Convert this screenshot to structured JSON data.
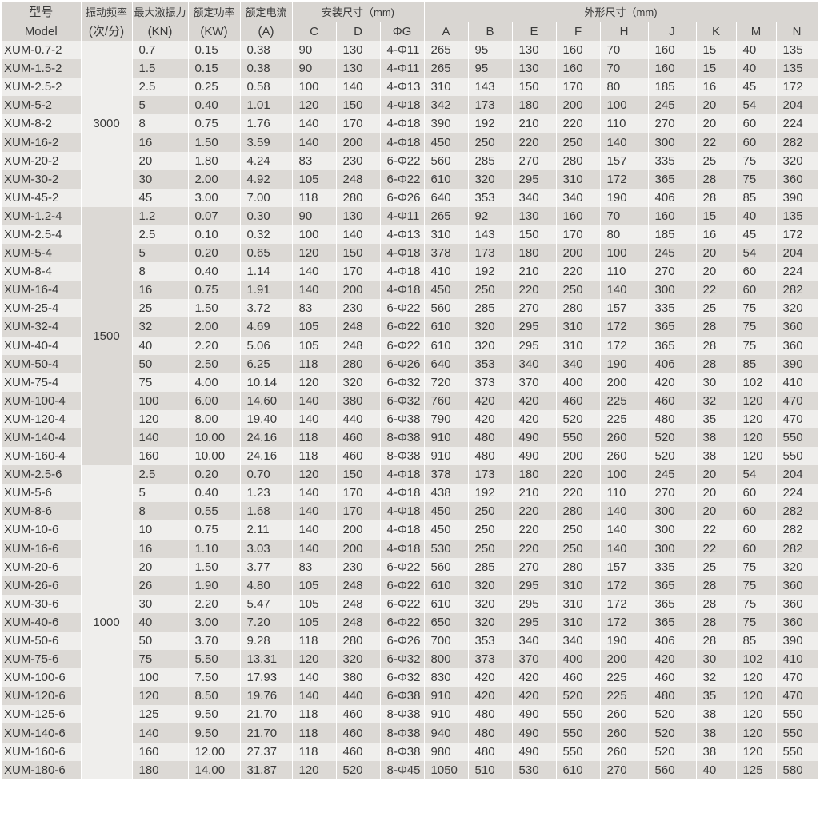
{
  "header": {
    "model_cn": "型号",
    "model_en": "Model",
    "freq_cn": "振动频率",
    "freq_unit": "(次/分)",
    "force_cn": "最大激振力",
    "force_unit": "(KN)",
    "power_cn": "额定功率",
    "power_unit": "(KW)",
    "current_cn": "额定电流",
    "current_unit": "(A)",
    "install_group": "安装尺寸（mm)",
    "outline_group": "外形尺寸（mm)",
    "install_cols": [
      "C",
      "D",
      "ΦG"
    ],
    "outline_cols": [
      "A",
      "B",
      "E",
      "F",
      "H",
      "J",
      "K",
      "M",
      "N"
    ]
  },
  "groups": [
    {
      "freq": "3000",
      "rows": [
        [
          "XUM-0.7-2",
          "0.7",
          "0.15",
          "0.38",
          "90",
          "130",
          "4-Φ11",
          "265",
          "95",
          "130",
          "160",
          "70",
          "160",
          "15",
          "40",
          "135"
        ],
        [
          "XUM-1.5-2",
          "1.5",
          "0.15",
          "0.38",
          "90",
          "130",
          "4-Φ11",
          "265",
          "95",
          "130",
          "160",
          "70",
          "160",
          "15",
          "40",
          "135"
        ],
        [
          "XUM-2.5-2",
          "2.5",
          "0.25",
          "0.58",
          "100",
          "140",
          "4-Φ13",
          "310",
          "143",
          "150",
          "170",
          "80",
          "185",
          "16",
          "45",
          "172"
        ],
        [
          "XUM-5-2",
          "5",
          "0.40",
          "1.01",
          "120",
          "150",
          "4-Φ18",
          "342",
          "173",
          "180",
          "200",
          "100",
          "245",
          "20",
          "54",
          "204"
        ],
        [
          "XUM-8-2",
          "8",
          "0.75",
          "1.76",
          "140",
          "170",
          "4-Φ18",
          "390",
          "192",
          "210",
          "220",
          "110",
          "270",
          "20",
          "60",
          "224"
        ],
        [
          "XUM-16-2",
          "16",
          "1.50",
          "3.59",
          "140",
          "200",
          "4-Φ18",
          "450",
          "250",
          "220",
          "250",
          "140",
          "300",
          "22",
          "60",
          "282"
        ],
        [
          "XUM-20-2",
          "20",
          "1.80",
          "4.24",
          "83",
          "230",
          "6-Φ22",
          "560",
          "285",
          "270",
          "280",
          "157",
          "335",
          "25",
          "75",
          "320"
        ],
        [
          "XUM-30-2",
          "30",
          "2.00",
          "4.92",
          "105",
          "248",
          "6-Φ22",
          "610",
          "320",
          "295",
          "310",
          "172",
          "365",
          "28",
          "75",
          "360"
        ],
        [
          "XUM-45-2",
          "45",
          "3.00",
          "7.00",
          "118",
          "280",
          "6-Φ26",
          "640",
          "353",
          "340",
          "340",
          "190",
          "406",
          "28",
          "85",
          "390"
        ]
      ]
    },
    {
      "freq": "1500",
      "rows": [
        [
          "XUM-1.2-4",
          "1.2",
          "0.07",
          "0.30",
          "90",
          "130",
          "4-Φ11",
          "265",
          "92",
          "130",
          "160",
          "70",
          "160",
          "15",
          "40",
          "135"
        ],
        [
          "XUM-2.5-4",
          "2.5",
          "0.10",
          "0.32",
          "100",
          "140",
          "4-Φ13",
          "310",
          "143",
          "150",
          "170",
          "80",
          "185",
          "16",
          "45",
          "172"
        ],
        [
          "XUM-5-4",
          "5",
          "0.20",
          "0.65",
          "120",
          "150",
          "4-Φ18",
          "378",
          "173",
          "180",
          "200",
          "100",
          "245",
          "20",
          "54",
          "204"
        ],
        [
          "XUM-8-4",
          "8",
          "0.40",
          "1.14",
          "140",
          "170",
          "4-Φ18",
          "410",
          "192",
          "210",
          "220",
          "110",
          "270",
          "20",
          "60",
          "224"
        ],
        [
          "XUM-16-4",
          "16",
          "0.75",
          "1.91",
          "140",
          "200",
          "4-Φ18",
          "450",
          "250",
          "220",
          "250",
          "140",
          "300",
          "22",
          "60",
          "282"
        ],
        [
          "XUM-25-4",
          "25",
          "1.50",
          "3.72",
          "83",
          "230",
          "6-Φ22",
          "560",
          "285",
          "270",
          "280",
          "157",
          "335",
          "25",
          "75",
          "320"
        ],
        [
          "XUM-32-4",
          "32",
          "2.00",
          "4.69",
          "105",
          "248",
          "6-Φ22",
          "610",
          "320",
          "295",
          "310",
          "172",
          "365",
          "28",
          "75",
          "360"
        ],
        [
          "XUM-40-4",
          "40",
          "2.20",
          "5.06",
          "105",
          "248",
          "6-Φ22",
          "610",
          "320",
          "295",
          "310",
          "172",
          "365",
          "28",
          "75",
          "360"
        ],
        [
          "XUM-50-4",
          "50",
          "2.50",
          "6.25",
          "118",
          "280",
          "6-Φ26",
          "640",
          "353",
          "340",
          "340",
          "190",
          "406",
          "28",
          "85",
          "390"
        ],
        [
          "XUM-75-4",
          "75",
          "4.00",
          "10.14",
          "120",
          "320",
          "6-Φ32",
          "720",
          "373",
          "370",
          "400",
          "200",
          "420",
          "30",
          "102",
          "410"
        ],
        [
          "XUM-100-4",
          "100",
          "6.00",
          "14.60",
          "140",
          "380",
          "6-Φ32",
          "760",
          "420",
          "420",
          "460",
          "225",
          "460",
          "32",
          "120",
          "470"
        ],
        [
          "XUM-120-4",
          "120",
          "8.00",
          "19.40",
          "140",
          "440",
          "6-Φ38",
          "790",
          "420",
          "420",
          "520",
          "225",
          "480",
          "35",
          "120",
          "470"
        ],
        [
          "XUM-140-4",
          "140",
          "10.00",
          "24.16",
          "118",
          "460",
          "8-Φ38",
          "910",
          "480",
          "490",
          "550",
          "260",
          "520",
          "38",
          "120",
          "550"
        ],
        [
          "XUM-160-4",
          "160",
          "10.00",
          "24.16",
          "118",
          "460",
          "8-Φ38",
          "910",
          "480",
          "490",
          "200",
          "260",
          "520",
          "38",
          "120",
          "550"
        ]
      ]
    },
    {
      "freq": "1000",
      "rows": [
        [
          "XUM-2.5-6",
          "2.5",
          "0.20",
          "0.70",
          "120",
          "150",
          "4-Φ18",
          "378",
          "173",
          "180",
          "220",
          "100",
          "245",
          "20",
          "54",
          "204"
        ],
        [
          "XUM-5-6",
          "5",
          "0.40",
          "1.23",
          "140",
          "170",
          "4-Φ18",
          "438",
          "192",
          "210",
          "220",
          "110",
          "270",
          "20",
          "60",
          "224"
        ],
        [
          "XUM-8-6",
          "8",
          "0.55",
          "1.68",
          "140",
          "170",
          "4-Φ18",
          "450",
          "250",
          "220",
          "280",
          "140",
          "300",
          "20",
          "60",
          "282"
        ],
        [
          "XUM-10-6",
          "10",
          "0.75",
          "2.11",
          "140",
          "200",
          "4-Φ18",
          "450",
          "250",
          "220",
          "250",
          "140",
          "300",
          "22",
          "60",
          "282"
        ],
        [
          "XUM-16-6",
          "16",
          "1.10",
          "3.03",
          "140",
          "200",
          "4-Φ18",
          "530",
          "250",
          "220",
          "250",
          "140",
          "300",
          "22",
          "60",
          "282"
        ],
        [
          "XUM-20-6",
          "20",
          "1.50",
          "3.77",
          "83",
          "230",
          "6-Φ22",
          "560",
          "285",
          "270",
          "280",
          "157",
          "335",
          "25",
          "75",
          "320"
        ],
        [
          "XUM-26-6",
          "26",
          "1.90",
          "4.80",
          "105",
          "248",
          "6-Φ22",
          "610",
          "320",
          "295",
          "310",
          "172",
          "365",
          "28",
          "75",
          "360"
        ],
        [
          "XUM-30-6",
          "30",
          "2.20",
          "5.47",
          "105",
          "248",
          "6-Φ22",
          "610",
          "320",
          "295",
          "310",
          "172",
          "365",
          "28",
          "75",
          "360"
        ],
        [
          "XUM-40-6",
          "40",
          "3.00",
          "7.20",
          "105",
          "248",
          "6-Φ22",
          "650",
          "320",
          "295",
          "310",
          "172",
          "365",
          "28",
          "75",
          "360"
        ],
        [
          "XUM-50-6",
          "50",
          "3.70",
          "9.28",
          "118",
          "280",
          "6-Φ26",
          "700",
          "353",
          "340",
          "340",
          "190",
          "406",
          "28",
          "85",
          "390"
        ],
        [
          "XUM-75-6",
          "75",
          "5.50",
          "13.31",
          "120",
          "320",
          "6-Φ32",
          "800",
          "373",
          "370",
          "400",
          "200",
          "420",
          "30",
          "102",
          "410"
        ],
        [
          "XUM-100-6",
          "100",
          "7.50",
          "17.93",
          "140",
          "380",
          "6-Φ32",
          "830",
          "420",
          "420",
          "460",
          "225",
          "460",
          "32",
          "120",
          "470"
        ],
        [
          "XUM-120-6",
          "120",
          "8.50",
          "19.76",
          "140",
          "440",
          "6-Φ38",
          "910",
          "420",
          "420",
          "520",
          "225",
          "480",
          "35",
          "120",
          "470"
        ],
        [
          "XUM-125-6",
          "125",
          "9.50",
          "21.70",
          "118",
          "460",
          "8-Φ38",
          "910",
          "480",
          "490",
          "550",
          "260",
          "520",
          "38",
          "120",
          "550"
        ],
        [
          "XUM-140-6",
          "140",
          "9.50",
          "21.70",
          "118",
          "460",
          "8-Φ38",
          "940",
          "480",
          "490",
          "550",
          "260",
          "520",
          "38",
          "120",
          "550"
        ],
        [
          "XUM-160-6",
          "160",
          "12.00",
          "27.37",
          "118",
          "460",
          "8-Φ38",
          "980",
          "480",
          "490",
          "550",
          "260",
          "520",
          "38",
          "120",
          "550"
        ],
        [
          "XUM-180-6",
          "180",
          "14.00",
          "31.87",
          "120",
          "520",
          "8-Φ45",
          "1050",
          "510",
          "530",
          "610",
          "270",
          "560",
          "40",
          "125",
          "580"
        ]
      ]
    }
  ]
}
